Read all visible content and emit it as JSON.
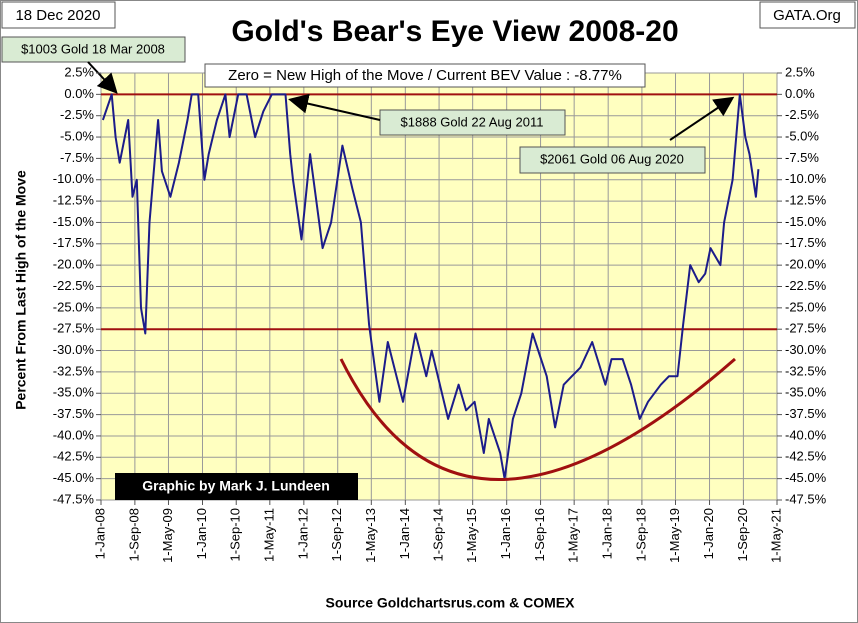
{
  "chart_data": {
    "type": "line",
    "title": "Gold's Bear's Eye View 2008-20",
    "date_label": "18 Dec 2020",
    "brand": "GATA.Org",
    "subtitle": "Zero = New High of the Move / Current  BEV Value : -8.77%",
    "credit": "Graphic by Mark J. Lundeen",
    "source": "Source Goldchartsrus.com & COMEX",
    "ylabel": "Percent  From Last High of the Move",
    "annotations": [
      "$1003 Gold 18 Mar 2008",
      "$1888 Gold 22 Aug 2011",
      "$2061 Gold 06 Aug 2020"
    ],
    "color": "#1c1c8a",
    "grid": true,
    "hlines": [
      {
        "value": 0,
        "color": "#a01010"
      },
      {
        "value": -27.5,
        "color": "#a01010"
      }
    ],
    "xlim": [
      "2008-01-01",
      "2021-05-01"
    ],
    "xticks": [
      {
        "value": "2008-01-01",
        "label": "1-Jan-08"
      },
      {
        "value": "2008-09-01",
        "label": "1-Sep-08"
      },
      {
        "value": "2009-05-01",
        "label": "1-May-09"
      },
      {
        "value": "2010-01-01",
        "label": "1-Jan-10"
      },
      {
        "value": "2010-09-01",
        "label": "1-Sep-10"
      },
      {
        "value": "2011-05-01",
        "label": "1-May-11"
      },
      {
        "value": "2012-01-01",
        "label": "1-Jan-12"
      },
      {
        "value": "2012-09-01",
        "label": "1-Sep-12"
      },
      {
        "value": "2013-05-01",
        "label": "1-May-13"
      },
      {
        "value": "2014-01-01",
        "label": "1-Jan-14"
      },
      {
        "value": "2014-09-01",
        "label": "1-Sep-14"
      },
      {
        "value": "2015-05-01",
        "label": "1-May-15"
      },
      {
        "value": "2016-01-01",
        "label": "1-Jan-16"
      },
      {
        "value": "2016-09-01",
        "label": "1-Sep-16"
      },
      {
        "value": "2017-05-01",
        "label": "1-May-17"
      },
      {
        "value": "2018-01-01",
        "label": "1-Jan-18"
      },
      {
        "value": "2018-09-01",
        "label": "1-Sep-18"
      },
      {
        "value": "2019-05-01",
        "label": "1-May-19"
      },
      {
        "value": "2020-01-01",
        "label": "1-Jan-20"
      },
      {
        "value": "2020-09-01",
        "label": "1-Sep-20"
      },
      {
        "value": "2021-05-01",
        "label": "1-May-21"
      }
    ],
    "ylim": [
      -47.5,
      2.5
    ],
    "yticks": [
      {
        "value": 2.5,
        "label": "2.5%"
      },
      {
        "value": 0,
        "label": "0.0%"
      },
      {
        "value": -2.5,
        "label": "-2.5%"
      },
      {
        "value": -5,
        "label": "-5.0%"
      },
      {
        "value": -7.5,
        "label": "-7.5%"
      },
      {
        "value": -10,
        "label": "-10.0%"
      },
      {
        "value": -12.5,
        "label": "-12.5%"
      },
      {
        "value": -15,
        "label": "-15.0%"
      },
      {
        "value": -17.5,
        "label": "-17.5%"
      },
      {
        "value": -20,
        "label": "-20.0%"
      },
      {
        "value": -22.5,
        "label": "-22.5%"
      },
      {
        "value": -25,
        "label": "-25.0%"
      },
      {
        "value": -27.5,
        "label": "-27.5%"
      },
      {
        "value": -30,
        "label": "-30.0%"
      },
      {
        "value": -32.5,
        "label": "-32.5%"
      },
      {
        "value": -35,
        "label": "-35.0%"
      },
      {
        "value": -37.5,
        "label": "-37.5%"
      },
      {
        "value": -40,
        "label": "-40.0%"
      },
      {
        "value": -42.5,
        "label": "-42.5%"
      },
      {
        "value": -45,
        "label": "-45.0%"
      },
      {
        "value": -47.5,
        "label": "-47.5%"
      }
    ],
    "x": [
      "2008-01-15",
      "2008-03-18",
      "2008-04-15",
      "2008-05-15",
      "2008-07-15",
      "2008-08-15",
      "2008-09-15",
      "2008-10-15",
      "2008-11-15",
      "2008-12-15",
      "2009-02-15",
      "2009-03-15",
      "2009-05-15",
      "2009-07-15",
      "2009-09-15",
      "2009-10-15",
      "2009-12-01",
      "2010-01-15",
      "2010-02-15",
      "2010-04-15",
      "2010-06-15",
      "2010-07-15",
      "2010-09-15",
      "2010-11-15",
      "2011-01-15",
      "2011-03-15",
      "2011-05-15",
      "2011-07-15",
      "2011-08-22",
      "2011-09-25",
      "2011-10-15",
      "2011-12-15",
      "2012-02-15",
      "2012-05-15",
      "2012-07-15",
      "2012-10-05",
      "2012-12-15",
      "2013-02-15",
      "2013-04-15",
      "2013-06-28",
      "2013-08-28",
      "2013-12-15",
      "2014-03-15",
      "2014-06-01",
      "2014-07-10",
      "2014-11-05",
      "2015-01-20",
      "2015-03-15",
      "2015-05-15",
      "2015-07-20",
      "2015-08-25",
      "2015-11-15",
      "2015-12-17",
      "2016-02-15",
      "2016-04-15",
      "2016-07-06",
      "2016-10-15",
      "2016-12-15",
      "2017-02-15",
      "2017-04-15",
      "2017-06-15",
      "2017-09-08",
      "2017-12-12",
      "2018-01-25",
      "2018-04-15",
      "2018-06-15",
      "2018-08-16",
      "2018-10-15",
      "2019-01-15",
      "2019-03-15",
      "2019-05-15",
      "2019-06-25",
      "2019-08-15",
      "2019-10-15",
      "2019-12-01",
      "2020-01-08",
      "2020-03-19",
      "2020-04-15",
      "2020-06-15",
      "2020-08-06",
      "2020-09-15",
      "2020-10-15",
      "2020-11-30",
      "2020-12-18"
    ],
    "values": [
      -3,
      0,
      -5,
      -8,
      -3,
      -12,
      -10,
      -25,
      -28,
      -15,
      -3,
      -9,
      -12,
      -8,
      -3,
      0,
      0,
      -10,
      -7,
      -3,
      0,
      -5,
      0,
      0,
      -5,
      -2,
      0,
      0,
      0,
      -7,
      -10,
      -17,
      -7,
      -18,
      -15,
      -6,
      -11,
      -15,
      -27,
      -36,
      -29,
      -36,
      -28,
      -33,
      -30,
      -38,
      -34,
      -37,
      -36,
      -42,
      -38,
      -42,
      -45,
      -38,
      -35,
      -28,
      -33,
      -39,
      -34,
      -33,
      -32,
      -29,
      -34,
      -31,
      -31,
      -34,
      -38,
      -36,
      -34,
      -33,
      -33,
      -27,
      -20,
      -22,
      -21,
      -18,
      -20,
      -15,
      -10,
      0,
      -5,
      -7,
      -12,
      -8.77
    ]
  }
}
